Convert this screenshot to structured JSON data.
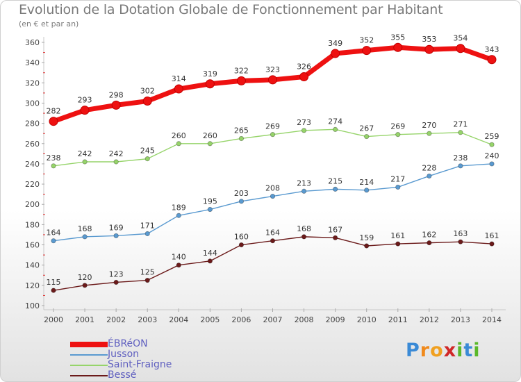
{
  "header": {
    "title": "Evolution de la Dotation Globale de Fonctionnement par Habitant",
    "subtitle": "(en € et par an)"
  },
  "brand": {
    "text": "Proxiti",
    "letters": [
      "P",
      "r",
      "o",
      "x",
      "i",
      "t",
      "i"
    ],
    "colors": [
      "#3a8ad6",
      "#f08a1c",
      "#f0a020",
      "#d02828",
      "#5ab82a",
      "#3a8ad6",
      "#5ab82a"
    ]
  },
  "chart_data": {
    "type": "line",
    "title": "Evolution de la Dotation Globale de Fonctionnement par Habitant",
    "ylabel": "(en € et par an)",
    "xlabel": "",
    "x": [
      "2000",
      "2001",
      "2002",
      "2003",
      "2004",
      "2005",
      "2006",
      "2007",
      "2008",
      "2009",
      "2010",
      "2011",
      "2012",
      "2013",
      "2014"
    ],
    "ylim": [
      100,
      360
    ],
    "yticks": [
      100,
      120,
      140,
      160,
      180,
      200,
      220,
      240,
      260,
      280,
      300,
      320,
      340,
      360
    ],
    "grid": false,
    "legend_position": "bottom-left",
    "series": [
      {
        "name": "Bessé",
        "color": "#6b1a1a",
        "values": [
          115,
          120,
          123,
          125,
          140,
          144,
          160,
          164,
          168,
          167,
          159,
          161,
          162,
          163,
          161
        ]
      },
      {
        "name": "Jusson",
        "color": "#5a9ad0",
        "values": [
          164,
          168,
          169,
          171,
          189,
          195,
          203,
          208,
          213,
          215,
          214,
          217,
          228,
          238,
          240
        ]
      },
      {
        "name": "Saint-Fraigne",
        "color": "#96d46a",
        "values": [
          238,
          242,
          242,
          245,
          260,
          260,
          265,
          269,
          273,
          274,
          267,
          269,
          270,
          271,
          259
        ]
      },
      {
        "name": "ÉBRéON",
        "color": "#ee1111",
        "values": [
          282,
          293,
          298,
          302,
          314,
          319,
          322,
          323,
          326,
          349,
          352,
          355,
          353,
          354,
          343
        ],
        "highlight": true
      }
    ],
    "legend_order": [
      "ÉBRéON",
      "Jusson",
      "Saint-Fraigne",
      "Bessé"
    ]
  }
}
